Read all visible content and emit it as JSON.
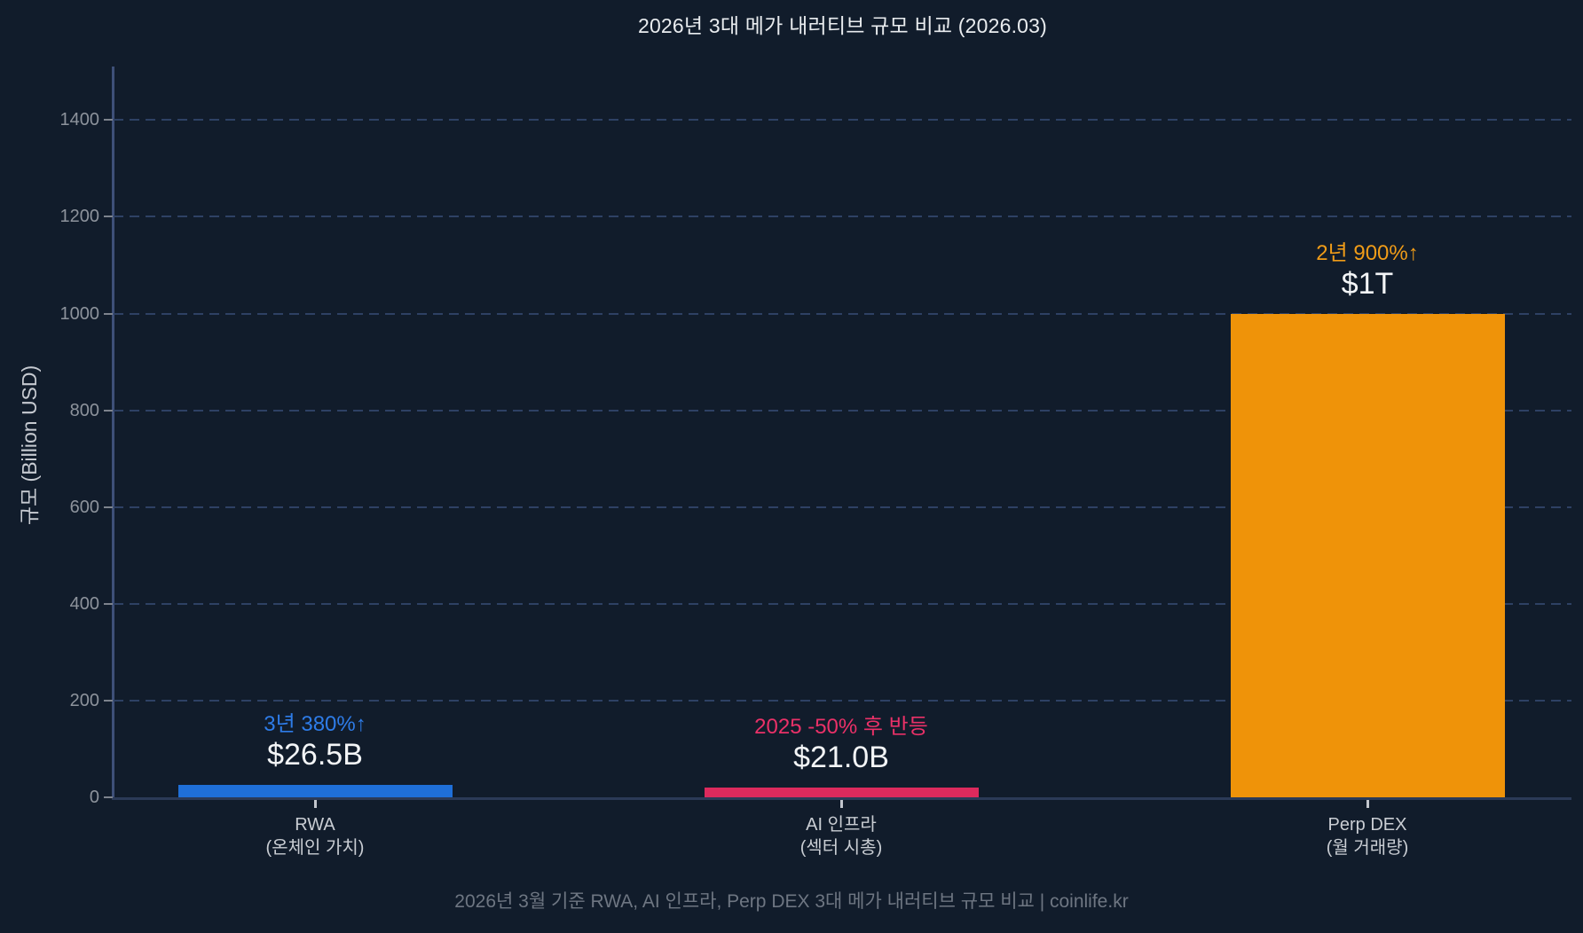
{
  "title": "2026년 3대 메가 내러티브 규모 비교 (2026.03)",
  "footer": "2026년 3월 기준 RWA, AI 인프라, Perp DEX 3대 메가 내러티브 규모 비교 | coinlife.kr",
  "colors": {
    "background": "#111c2b",
    "title_text": "#e9ecef",
    "tick_text": "#8d939c",
    "category_text": "#c9cdd3",
    "value_text": "#f3f5f7",
    "footer_text": "#6e7682",
    "gridline": "#2e4164",
    "x_axis_line": "#2b3a57",
    "y_axis_line": "#3e5078",
    "bar_blue": "#1f6fd8",
    "bar_pink": "#dc2a5d",
    "bar_orange": "#ef9309"
  },
  "chart_data": {
    "type": "bar",
    "title": "2026년 3대 메가 내러티브 규모 비교 (2026.03)",
    "xlabel": "",
    "ylabel": "규모 (Billion USD)",
    "ylim": [
      0,
      1510
    ],
    "yticks": [
      0,
      200,
      400,
      600,
      800,
      1000,
      1200,
      1400
    ],
    "grid": "horizontal-dashed",
    "legend": "none",
    "categories": [
      "RWA",
      "AI 인프라",
      "Perp DEX"
    ],
    "category_sublabels": [
      "(온체인 가치)",
      "(섹터 시총)",
      "(월 거래량)"
    ],
    "values": [
      26.5,
      21.0,
      1000
    ],
    "bars": [
      {
        "category": "RWA",
        "sublabel": "(온체인 가치)",
        "value": 26.5,
        "value_label": "$26.5B",
        "note": "3년 380%↑",
        "color": "#1f6fd8",
        "note_color": "#2e7ce8"
      },
      {
        "category": "AI 인프라",
        "sublabel": "(섹터 시총)",
        "value": 21.0,
        "value_label": "$21.0B",
        "note": "2025 -50% 후 반등",
        "color": "#dc2a5d",
        "note_color": "#ea3168"
      },
      {
        "category": "Perp DEX",
        "sublabel": "(월 거래량)",
        "value": 1000,
        "value_label": "$1T",
        "note": "2년 900%↑",
        "color": "#ef9309",
        "note_color": "#f09c18"
      }
    ]
  }
}
